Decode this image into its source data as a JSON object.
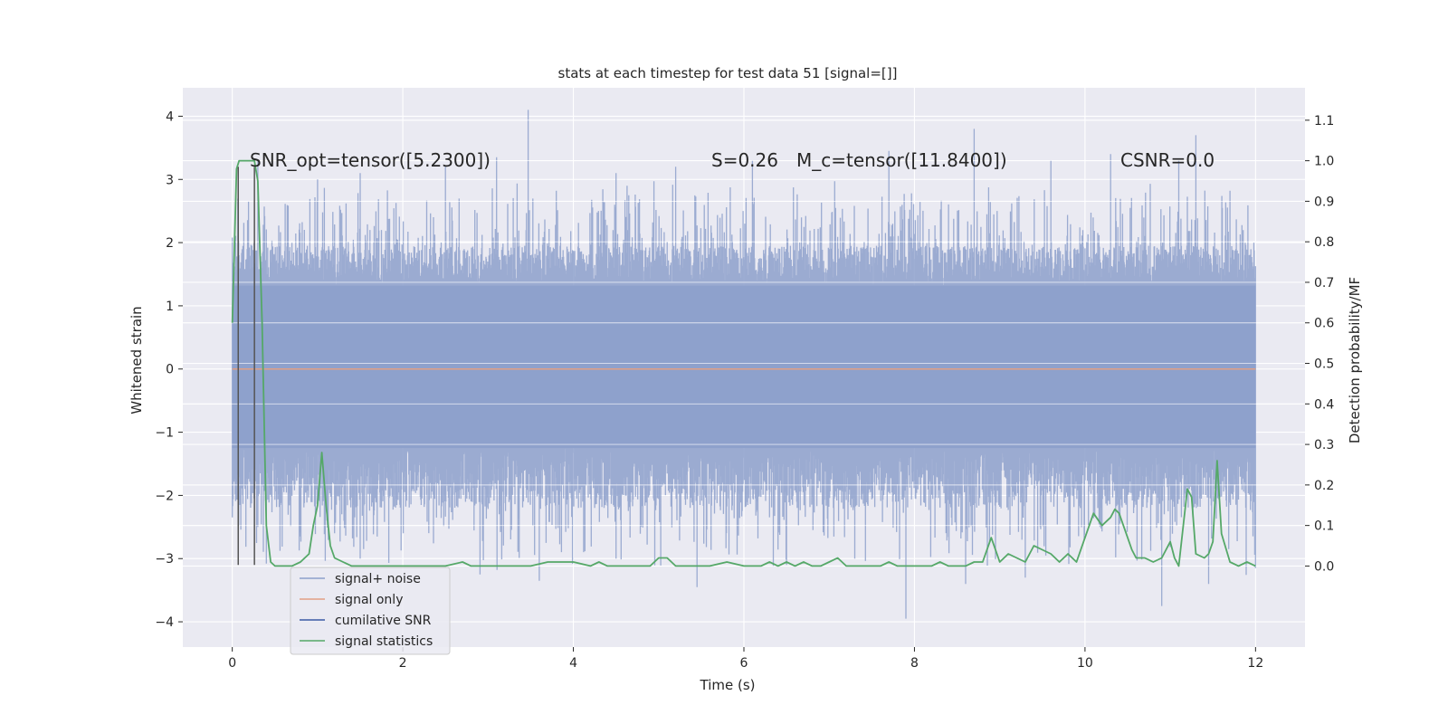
{
  "chart_data": {
    "type": "line",
    "title": "stats at each timestep for test data 51 [signal=[]]",
    "xlabel": "Time (s)",
    "ylabel": "Whitened strain",
    "y2label": "Detection probability/MF",
    "xlim": [
      -0.58,
      12.58
    ],
    "ylim": [
      -4.4,
      4.45
    ],
    "y2lim": [
      -0.2,
      1.18
    ],
    "xticks": [
      0,
      2,
      4,
      6,
      8,
      10,
      12
    ],
    "yticks": [
      -4,
      -3,
      -2,
      -1,
      0,
      1,
      2,
      3,
      4
    ],
    "y2ticks": [
      0.0,
      0.1,
      0.2,
      0.3,
      0.4,
      0.5,
      0.6,
      0.7,
      0.8,
      0.9,
      1.0,
      1.1
    ],
    "xtick_labels": [
      "0",
      "2",
      "4",
      "6",
      "8",
      "10",
      "12"
    ],
    "ytick_labels": [
      "−4",
      "−3",
      "−2",
      "−1",
      "0",
      "1",
      "2",
      "3",
      "4"
    ],
    "y2tick_labels": [
      "0.0",
      "0.1",
      "0.2",
      "0.3",
      "0.4",
      "0.5",
      "0.6",
      "0.7",
      "0.8",
      "0.9",
      "1.0",
      "1.1"
    ],
    "annotations": {
      "snr_opt": "SNR_opt=tensor([5.2300])",
      "s_value": "S=0.26",
      "mc_value": "M_c=tensor([11.8400])",
      "csnr": "CSNR=0.0"
    },
    "legend": {
      "position": "lower-left",
      "entries": [
        "signal+ noise",
        "signal only",
        "cumilative SNR",
        "signal statistics"
      ]
    },
    "colors": {
      "noise": "#8da0cb",
      "signal_only": "#e1a084",
      "cumulative_snr": "#3b5aa4",
      "statistics": "#55a868",
      "axes_bg": "#eaeaf2",
      "grid": "#ffffff",
      "vline": "#555555"
    },
    "vertical_lines_x": [
      0.07,
      0.26
    ],
    "vertical_lines_y": [
      -3.1,
      3.2
    ],
    "series": [
      {
        "name": "signal+ noise",
        "kind": "noise_band",
        "x_range": [
          0,
          12
        ],
        "core_band": [
          -1.25,
          1.32
        ],
        "envelope": [
          -2.2,
          1.95
        ],
        "peaks_up": [
          [
            0.0,
            2.08
          ],
          [
            0.3,
            3.3
          ],
          [
            1.0,
            3.0
          ],
          [
            1.5,
            3.1
          ],
          [
            2.5,
            3.2
          ],
          [
            3.1,
            3.35
          ],
          [
            3.47,
            4.1
          ],
          [
            4.5,
            3.1
          ],
          [
            5.2,
            3.2
          ],
          [
            6.1,
            3.3
          ],
          [
            7.7,
            3.45
          ],
          [
            8.7,
            3.8
          ],
          [
            9.6,
            3.3
          ],
          [
            10.3,
            3.4
          ],
          [
            11.1,
            3.3
          ],
          [
            11.3,
            3.7
          ],
          [
            11.9,
            1.78
          ]
        ],
        "peaks_down": [
          [
            0.0,
            -2.35
          ],
          [
            0.3,
            -2.5
          ],
          [
            1.2,
            -2.6
          ],
          [
            1.5,
            -3.0
          ],
          [
            3.6,
            -3.35
          ],
          [
            4.5,
            -3.0
          ],
          [
            5.45,
            -3.45
          ],
          [
            6.5,
            -3.1
          ],
          [
            7.3,
            -3.0
          ],
          [
            7.9,
            -3.95
          ],
          [
            8.6,
            -3.4
          ],
          [
            9.3,
            -3.3
          ],
          [
            10.9,
            -3.75
          ],
          [
            11.45,
            -3.4
          ],
          [
            12.0,
            -3.15
          ]
        ]
      },
      {
        "name": "signal only",
        "kind": "line",
        "x": [
          0,
          12
        ],
        "y": [
          0.0,
          0.0
        ]
      },
      {
        "name": "cumilative SNR",
        "kind": "line",
        "x": [
          0,
          12
        ],
        "y": [
          0.0,
          0.0
        ]
      },
      {
        "name": "signal statistics",
        "kind": "line",
        "axis": "y2",
        "x": [
          0.0,
          0.05,
          0.08,
          0.12,
          0.18,
          0.22,
          0.26,
          0.3,
          0.35,
          0.4,
          0.45,
          0.5,
          0.6,
          0.7,
          0.8,
          0.9,
          0.95,
          1.0,
          1.05,
          1.1,
          1.15,
          1.2,
          1.3,
          1.4,
          1.6,
          1.8,
          2.0,
          2.2,
          2.5,
          2.7,
          2.8,
          3.0,
          3.2,
          3.5,
          3.7,
          4.0,
          4.2,
          4.3,
          4.4,
          4.6,
          4.8,
          4.9,
          5.0,
          5.1,
          5.2,
          5.4,
          5.6,
          5.8,
          6.0,
          6.2,
          6.3,
          6.4,
          6.5,
          6.6,
          6.7,
          6.8,
          6.9,
          7.0,
          7.1,
          7.2,
          7.4,
          7.6,
          7.7,
          7.8,
          8.0,
          8.2,
          8.3,
          8.4,
          8.6,
          8.7,
          8.8,
          8.9,
          9.0,
          9.1,
          9.2,
          9.3,
          9.4,
          9.5,
          9.6,
          9.7,
          9.8,
          9.9,
          10.0,
          10.05,
          10.1,
          10.2,
          10.3,
          10.35,
          10.4,
          10.5,
          10.55,
          10.6,
          10.7,
          10.8,
          10.9,
          11.0,
          11.05,
          11.1,
          11.2,
          11.25,
          11.3,
          11.4,
          11.45,
          11.5,
          11.55,
          11.6,
          11.7,
          11.8,
          11.9,
          12.0
        ],
        "y": [
          0.6,
          0.98,
          1.0,
          1.0,
          1.0,
          1.0,
          1.0,
          0.95,
          0.6,
          0.1,
          0.01,
          0.0,
          0.0,
          0.0,
          0.01,
          0.03,
          0.1,
          0.15,
          0.28,
          0.15,
          0.05,
          0.02,
          0.01,
          0.0,
          0.0,
          0.0,
          0.0,
          0.0,
          0.0,
          0.01,
          0.0,
          0.0,
          0.0,
          0.0,
          0.01,
          0.01,
          0.0,
          0.01,
          0.0,
          0.0,
          0.0,
          0.0,
          0.02,
          0.02,
          0.0,
          0.0,
          0.0,
          0.01,
          0.0,
          0.0,
          0.01,
          0.0,
          0.01,
          0.0,
          0.01,
          0.0,
          0.0,
          0.01,
          0.02,
          0.0,
          0.0,
          0.0,
          0.01,
          0.0,
          0.0,
          0.0,
          0.01,
          0.0,
          0.0,
          0.01,
          0.01,
          0.07,
          0.01,
          0.03,
          0.02,
          0.01,
          0.05,
          0.04,
          0.03,
          0.01,
          0.03,
          0.01,
          0.07,
          0.1,
          0.13,
          0.1,
          0.12,
          0.14,
          0.13,
          0.07,
          0.04,
          0.02,
          0.02,
          0.01,
          0.02,
          0.06,
          0.02,
          0.0,
          0.19,
          0.17,
          0.03,
          0.02,
          0.03,
          0.06,
          0.26,
          0.08,
          0.01,
          0.0,
          0.01,
          0.0
        ]
      }
    ]
  }
}
